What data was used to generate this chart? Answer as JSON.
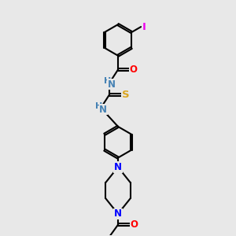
{
  "bg_color": "#e8e8e8",
  "bond_color": "#000000",
  "atom_colors": {
    "N": "#0000FF",
    "O": "#FF0000",
    "S": "#DAA520",
    "I": "#EE00EE",
    "H": "#4682B4"
  },
  "line_width": 1.5,
  "font_size": 8.5
}
